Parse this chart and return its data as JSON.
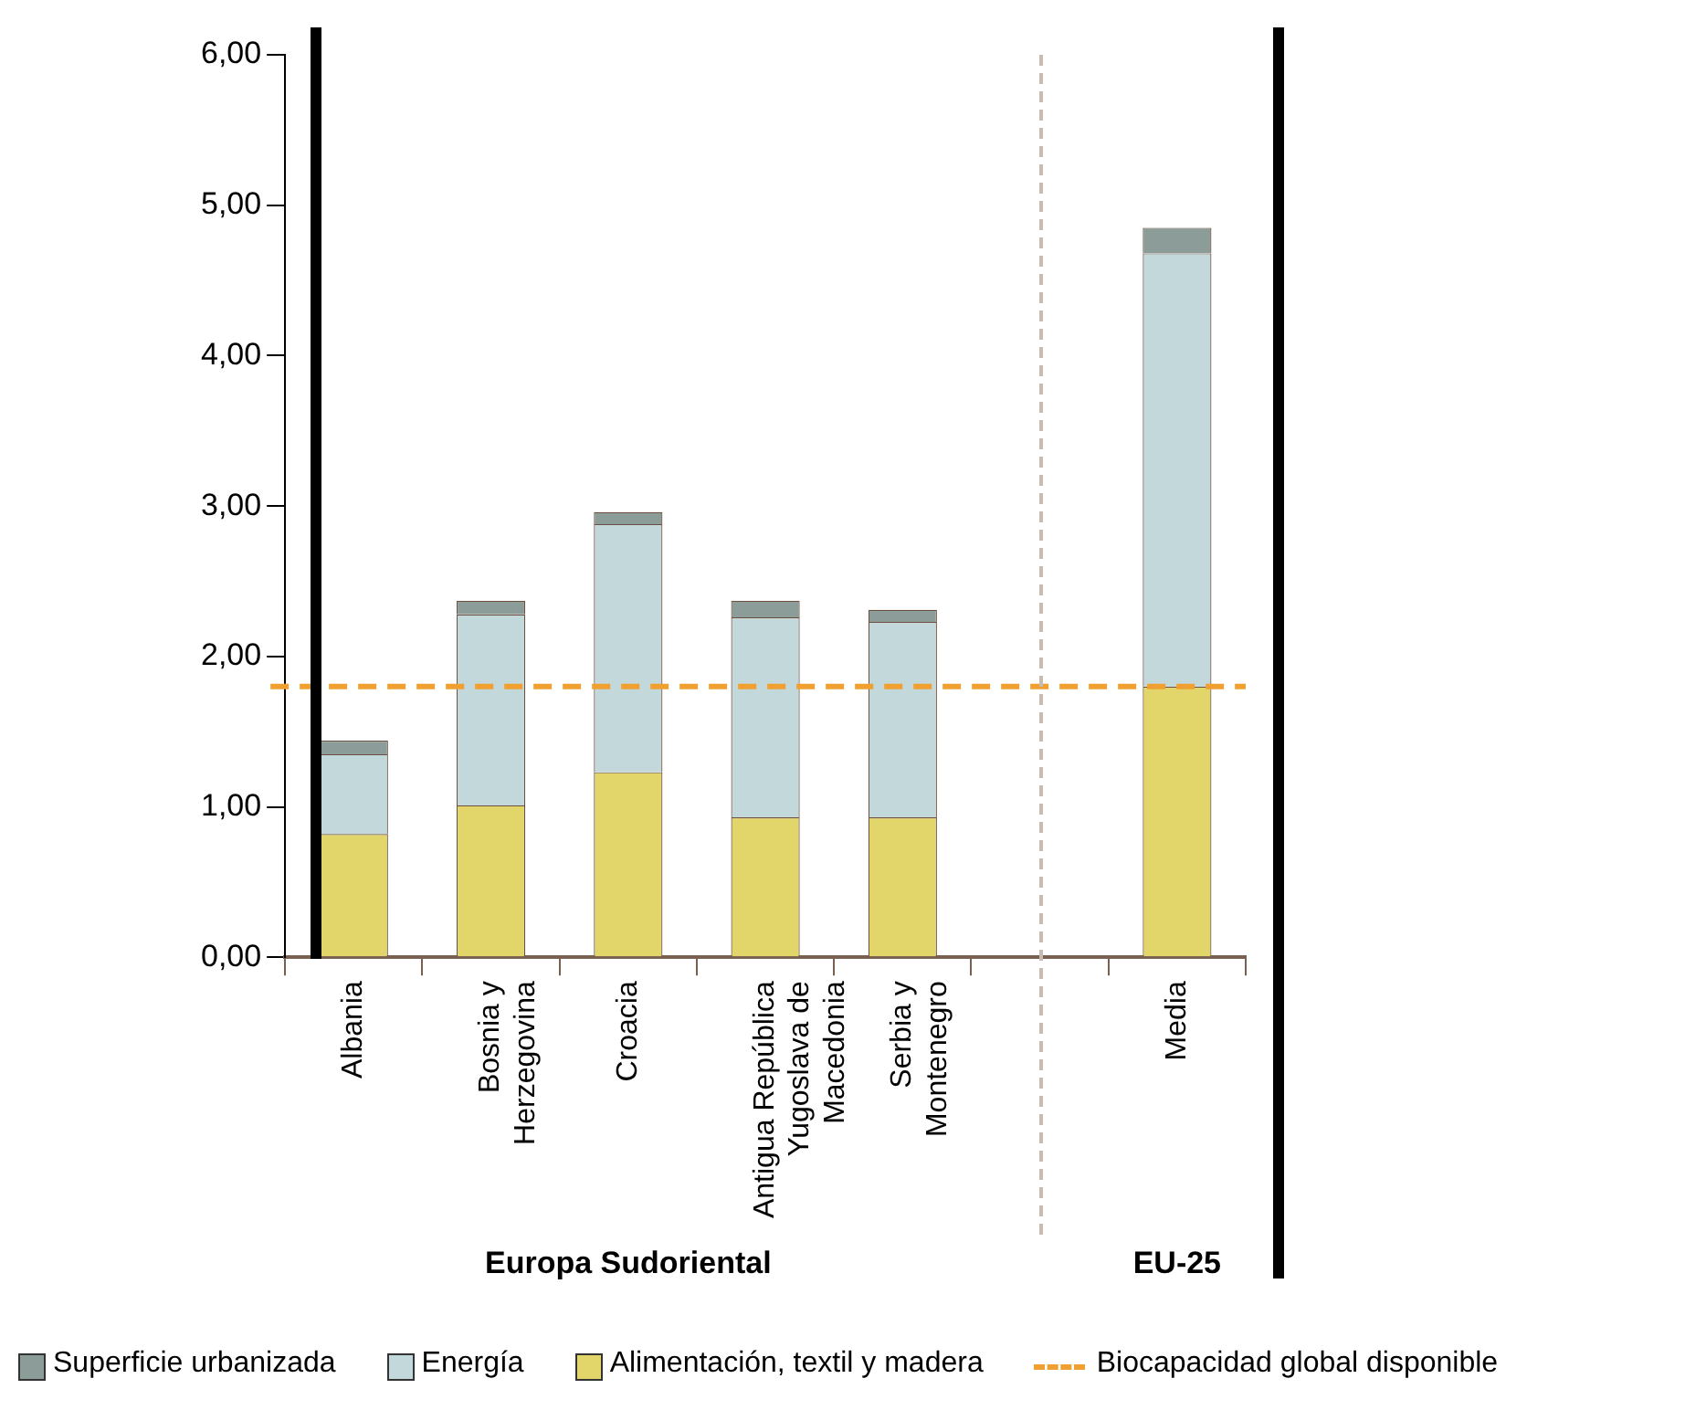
{
  "chart_data": {
    "type": "bar",
    "stacked": true,
    "categories": [
      "Albania",
      "Bosnia y Herzegovina",
      "Croacia",
      "Antigua República Yugoslava de Macedonia",
      "Serbia y Montenegro",
      null,
      "Media"
    ],
    "series": [
      {
        "name": "Alimentación, textil y madera",
        "color": "#e2d56a",
        "values": [
          0.82,
          1.01,
          1.23,
          0.93,
          0.93,
          null,
          1.8
        ]
      },
      {
        "name": "Energía",
        "color": "#c3d8da",
        "values": [
          0.53,
          1.27,
          1.65,
          1.33,
          1.3,
          null,
          2.88
        ]
      },
      {
        "name": "Superficie urbanizada",
        "color": "#8c9c98",
        "values": [
          0.09,
          0.09,
          0.08,
          0.11,
          0.08,
          null,
          0.17
        ]
      }
    ],
    "ylim": [
      0,
      6
    ],
    "yticks": [
      {
        "value": 0,
        "label": "0,00"
      },
      {
        "value": 1,
        "label": "1,00"
      },
      {
        "value": 2,
        "label": "2,00"
      },
      {
        "value": 3,
        "label": "3,00"
      },
      {
        "value": 4,
        "label": "4,00"
      },
      {
        "value": 5,
        "label": "5,00"
      },
      {
        "value": 6,
        "label": "6,00"
      }
    ],
    "ref_lines": [
      {
        "axis": "y",
        "value": 1.8,
        "label": "Biocapacidad global disponible",
        "color": "#f0a030",
        "line_style": "dashed"
      }
    ],
    "annotations": [
      "Europa Sudoriental",
      "EU-25"
    ],
    "grid": false,
    "legend": "bottom"
  }
}
